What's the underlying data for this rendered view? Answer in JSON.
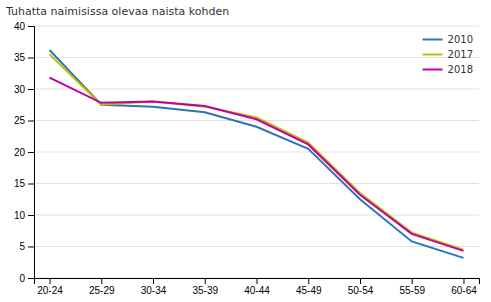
{
  "chart_data": {
    "type": "line",
    "title": "Tuhatta naimisissa olevaa naista kohden",
    "categories": [
      "20-24",
      "25-29",
      "30-34",
      "35-39",
      "40-44",
      "45-49",
      "50-54",
      "55-59",
      "60-64"
    ],
    "series": [
      {
        "name": "2010",
        "color": "#2E75B6",
        "values": [
          36.2,
          27.5,
          27.2,
          26.3,
          24.0,
          20.5,
          12.5,
          5.8,
          3.2
        ]
      },
      {
        "name": "2017",
        "color": "#BFBF00",
        "values": [
          35.5,
          27.5,
          28.0,
          27.2,
          25.5,
          21.5,
          13.5,
          7.2,
          4.5
        ]
      },
      {
        "name": "2018",
        "color": "#C000A0",
        "values": [
          31.8,
          27.8,
          28.0,
          27.3,
          25.2,
          21.2,
          13.2,
          7.0,
          4.3
        ]
      }
    ],
    "ylim": [
      0,
      40
    ],
    "yticks": [
      0,
      5,
      10,
      15,
      20,
      25,
      30,
      35,
      40
    ],
    "grid": true,
    "legend": "upper right"
  }
}
